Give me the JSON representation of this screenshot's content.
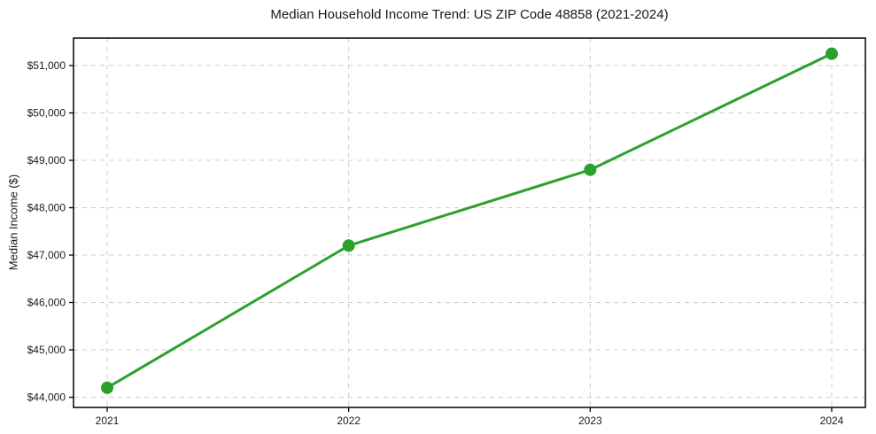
{
  "chart_data": {
    "type": "line",
    "title": "Median Household Income Trend: US ZIP Code 48858 (2021-2024)",
    "xlabel": "",
    "ylabel": "Median Income ($)",
    "x": [
      2021,
      2022,
      2023,
      2024
    ],
    "x_tick_labels": [
      "2021",
      "2022",
      "2023",
      "2024"
    ],
    "series": [
      {
        "name": "Median Household Income",
        "values": [
          44200,
          47200,
          48800,
          51250
        ]
      }
    ],
    "y_ticks": [
      44000,
      45000,
      46000,
      47000,
      48000,
      49000,
      50000,
      51000
    ],
    "y_tick_labels": [
      "$44,000",
      "$45,000",
      "$46,000",
      "$47,000",
      "$48,000",
      "$49,000",
      "$50,000",
      "$51,000"
    ],
    "ylim": [
      43785,
      51580
    ],
    "grid": true,
    "grid_style": "dashed",
    "legend": null,
    "colors": {
      "line": "#2ca02c",
      "marker": "#2ca02c",
      "grid": "#cccccc",
      "spine": "#000000",
      "text": "#1a1a1a",
      "background": "#ffffff"
    }
  }
}
